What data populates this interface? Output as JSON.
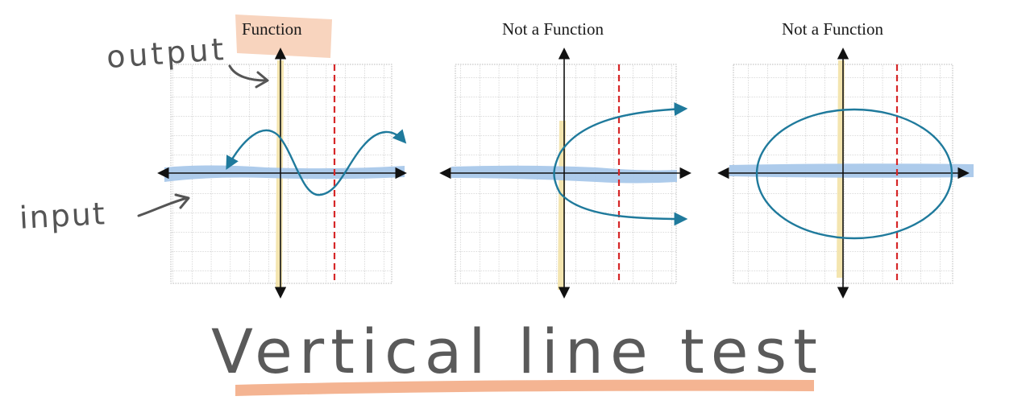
{
  "colors": {
    "grid": "#b8b8b8",
    "axis": "#111111",
    "curve": "#1f7a9c",
    "dashed_line": "#d62728",
    "input_highlight": "#a9c8ea",
    "output_highlight": "#f3e2a6",
    "title_highlight": "#f7cdb3",
    "underline": "#f2a77f",
    "handwriting": "#555555"
  },
  "panels": [
    {
      "title": "Function",
      "curve": "sine-wave"
    },
    {
      "title": "Not a Function",
      "curve": "sideways-parabola"
    },
    {
      "title": "Not a Function",
      "curve": "ellipse"
    }
  ],
  "annotations": {
    "output_label": "output",
    "input_label": "input",
    "caption": "Vertical line test"
  }
}
